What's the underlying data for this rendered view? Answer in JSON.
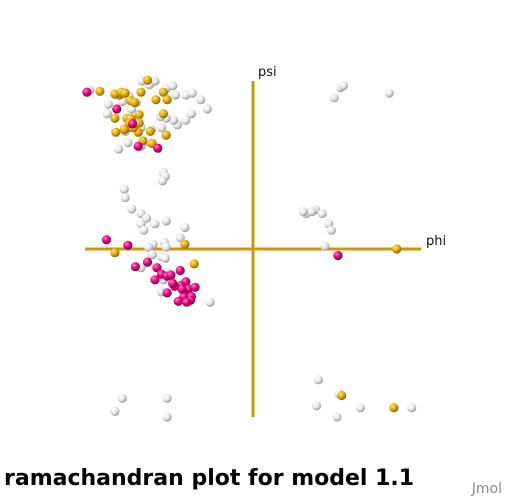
{
  "chart_data": {
    "type": "scatter",
    "title": "ramachandran plot for model 1.1",
    "xlabel": "phi",
    "ylabel": "psi",
    "xlim": [
      -180,
      180
    ],
    "ylim": [
      -180,
      180
    ],
    "grid": false,
    "legend": "none",
    "colors": {
      "white": "#e8e8e8",
      "gold": "#e0a800",
      "pink": "#e0007a",
      "axis": "#c89a00"
    },
    "series": [
      {
        "color": "gold",
        "x": [
          -143,
          -164,
          -148,
          -141,
          -137,
          -131,
          -127,
          -120,
          -113,
          -104,
          -96,
          -92,
          -96,
          -122,
          -135,
          -130,
          -148,
          -131,
          -122,
          -134,
          -147,
          -110,
          -93,
          -123,
          -118,
          -108,
          -73,
          -148,
          -63,
          95,
          151,
          154,
          -128,
          -132,
          -138
        ],
        "y": [
          165,
          169,
          166,
          168,
          167,
          159,
          157,
          168,
          181,
          160,
          168,
          160,
          145,
          144,
          140,
          138,
          140,
          140,
          135,
          130,
          125,
          126,
          122,
          125,
          116,
          113,
          5,
          -4,
          -16,
          -157,
          -170,
          0,
          130,
          135,
          128
        ]
      },
      {
        "color": "pink",
        "x": [
          -178,
          -146,
          -129,
          -123,
          -102,
          -157,
          -134,
          -126,
          -113,
          -103,
          -105,
          -98,
          -92,
          -77,
          -72,
          -84,
          -71,
          -69,
          -62,
          -78,
          -88,
          -86,
          -74,
          -76,
          -66,
          -67,
          -92,
          -80,
          -71,
          91
        ],
        "y": [
          168,
          150,
          134,
          110,
          108,
          10,
          4,
          -19,
          -14,
          -20,
          -33,
          -27,
          -29,
          -39,
          -35,
          -40,
          -44,
          -43,
          -41,
          -23,
          -28,
          -37,
          -51,
          -43,
          -51,
          -55,
          -47,
          -56,
          -57,
          -7
        ]
      },
      {
        "color": "white",
        "x": [
          -175,
          -155,
          -140,
          -133,
          -125,
          -119,
          -111,
          -105,
          -93,
          -86,
          -83,
          -72,
          -65,
          -56,
          -49,
          -66,
          -72,
          -81,
          -85,
          -93,
          -98,
          -109,
          -120,
          -128,
          -137,
          -113,
          -120,
          -134,
          -156,
          -130,
          -137,
          -144,
          -99,
          -96,
          -94,
          -97,
          -138,
          -137,
          -130,
          -120,
          -105,
          -114,
          -93,
          -120,
          -117,
          -73,
          -78,
          -95,
          -107,
          -112,
          -108,
          -98,
          -120,
          -94,
          -75,
          -87,
          -46,
          -98,
          -96,
          -92,
          -93,
          94,
          97,
          87,
          146,
          57,
          67,
          63,
          74,
          81,
          84,
          77,
          54,
          70,
          92,
          115,
          68,
          90,
          170,
          -92,
          -140,
          -92,
          -148
        ],
        "y": [
          170,
          155,
          158,
          164,
          157,
          180,
          176,
          180,
          172,
          175,
          165,
          165,
          167,
          160,
          150,
          145,
          138,
          133,
          138,
          140,
          130,
          128,
          130,
          133,
          131,
          115,
          110,
          114,
          145,
          150,
          126,
          107,
          142,
          82,
          78,
          73,
          64,
          55,
          43,
          38,
          27,
          33,
          30,
          27,
          20,
          23,
          12,
          7,
          5,
          2,
          -6,
          -8,
          -20,
          -10,
          -45,
          -35,
          -57,
          -46,
          -33,
          -25,
          2,
          173,
          175,
          162,
          167,
          38,
          42,
          40,
          38,
          27,
          20,
          3,
          40,
          -140,
          -155,
          -170,
          -168,
          -180,
          -170,
          -160,
          -160,
          -180,
          -174
        ]
      }
    ]
  }
}
